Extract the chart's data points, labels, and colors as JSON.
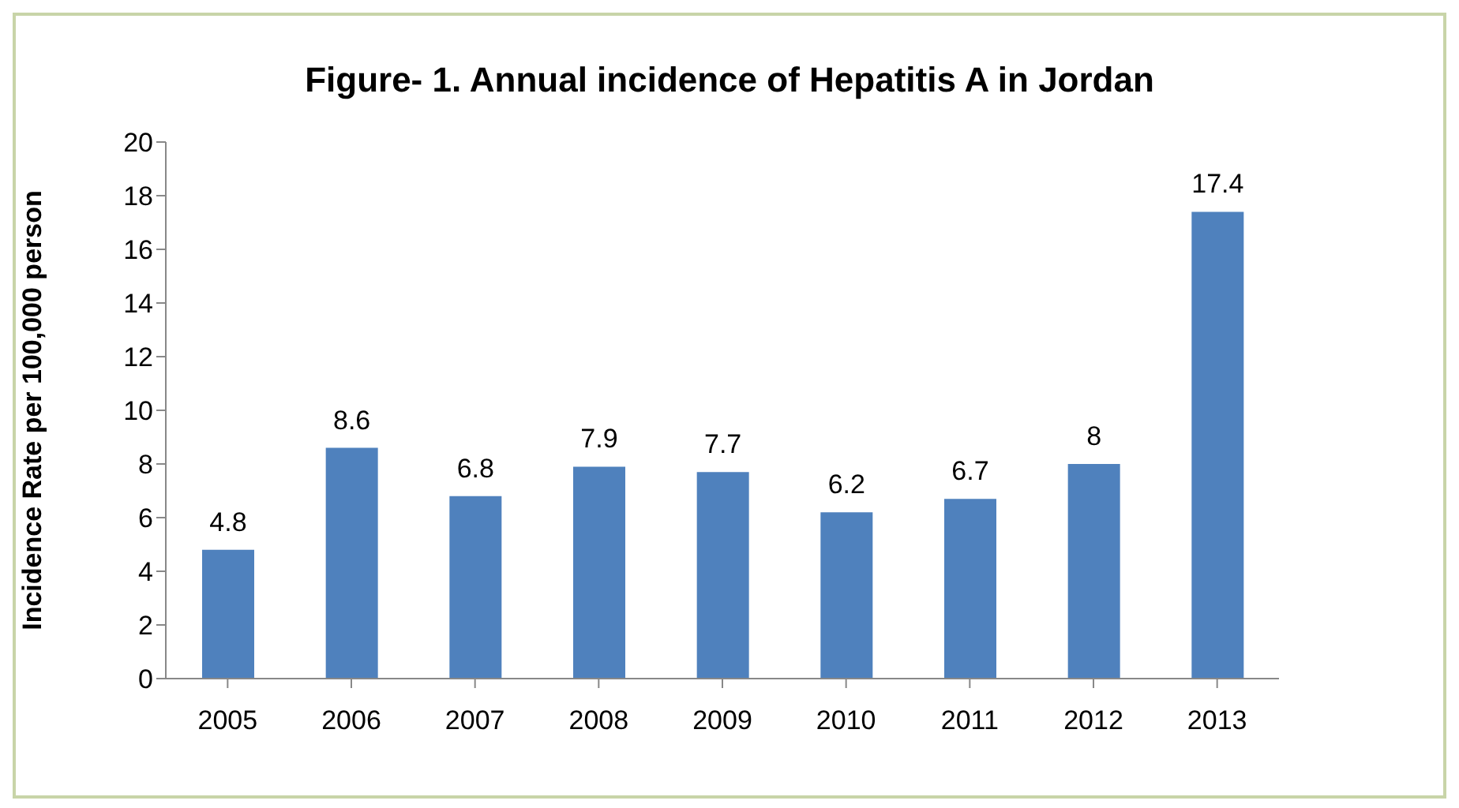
{
  "chart_data": {
    "type": "bar",
    "title": "Figure- 1. Annual incidence of Hepatitis A in Jordan",
    "ylabel": "Incidence Rate per 100,000 person",
    "categories": [
      "2005",
      "2006",
      "2007",
      "2008",
      "2009",
      "2010",
      "2011",
      "2012",
      "2013"
    ],
    "values": [
      4.8,
      8.6,
      6.8,
      7.9,
      7.7,
      6.2,
      6.7,
      8,
      17.4
    ],
    "color": "#4f81bd",
    "ylim": [
      0,
      20
    ],
    "yticks": [
      0,
      2,
      4,
      6,
      8,
      10,
      12,
      14,
      16,
      18,
      20
    ],
    "grid": false,
    "data_labels": true
  }
}
